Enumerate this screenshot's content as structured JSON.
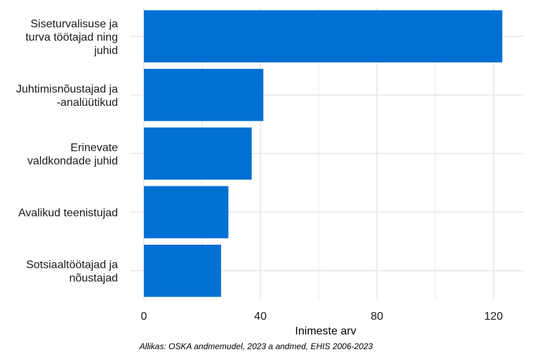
{
  "chart_data": {
    "type": "bar",
    "orientation": "horizontal",
    "categories": [
      "Siseturvalisuse ja turva töötajad ning juhid",
      "Juhtimisnõustajad ja -analüütikud",
      "Erinevate valdkondade juhid",
      "Avalikud teenistujad",
      "Sotsiaaltöötajad ja nõustajad"
    ],
    "category_lines": [
      [
        "Siseturvalisuse ja",
        "turva töötajad ning",
        "juhid"
      ],
      [
        "Juhtimisnõustajad ja",
        "-analüütikud"
      ],
      [
        "Erinevate",
        "valdkondade juhid"
      ],
      [
        "Avalikud teenistujad"
      ],
      [
        "Sotsiaaltöötajad ja",
        "nõustajad"
      ]
    ],
    "values": [
      123,
      41,
      37,
      29,
      26.5
    ],
    "xlabel": "Inimeste arv",
    "ylabel": "",
    "xlim": [
      0,
      130
    ],
    "x_ticks": [
      0,
      40,
      80,
      120
    ],
    "grid": true,
    "colors": {
      "bar": "#0070d2",
      "grid": "#e8e8e8",
      "text": "#000000",
      "tick_text": "#1a1a1a"
    }
  },
  "source_caption": "Allikas: OSKA andmemudel, 2023 a andmed, EHIS 2006-2023"
}
